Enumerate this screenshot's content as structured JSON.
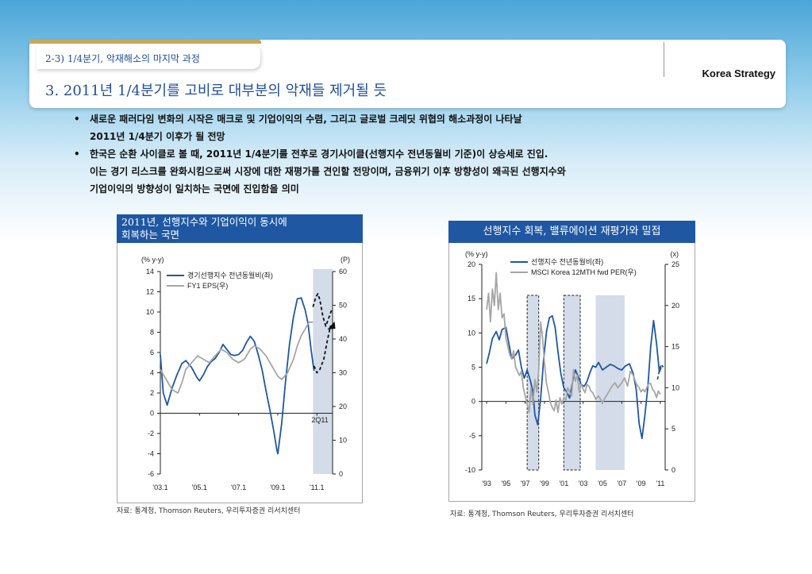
{
  "header": {
    "section_tab": "2-3) 1/4분기, 악재해소의 마지막 과정",
    "brand": "Korea Strategy",
    "title": "3. 2011년 1/4분기를 고비로 대부분의 악재들 제거될 듯"
  },
  "bullets": [
    {
      "lines": [
        "새로운 패러다임 변화의 시작은 매크로 및 기업이익의 수렴, 그리고 글로벌 크레딧 위협의 해소과정이 나타날",
        "2011년 1/4분기 이후가 될 전망"
      ]
    },
    {
      "lines": [
        "한국은 순환 사이클로 볼 때, 2011년 1/4분기를 전후로 경기사이클(선행지수 전년동월비 기준)이 상승세로 진입.",
        "이는 경기 리스크를 완화시킴으로써 시장에 대한 재평가를 견인할 전망이며, 금융위기 이후 방향성이 왜곡된 선행지수와",
        "기업이익의 방향성이 일치하는 국면에 진입함을 의미"
      ]
    }
  ],
  "chart1": {
    "title_lines": [
      "2011년, 선행지수와 기업이익이 동시에",
      "회복하는 국면"
    ],
    "source": "자료: 통계청, Thomson Reuters, 우리투자증권 리서치센터"
  },
  "chart2": {
    "title": "선행지수 회복, 밸류에이션 재평가와 밀접",
    "source": "자료: 통계청, Thomson Reuters, 우리투자증권 리서치센터"
  },
  "chart_data": [
    {
      "type": "line",
      "left_unit": "(% y-y)",
      "right_unit": "(P)",
      "ylim": [
        -6,
        14
      ],
      "y_ticks": [
        "14",
        "12",
        "10",
        "8",
        "6",
        "4",
        "2",
        "0",
        "-2",
        "-4",
        "-6"
      ],
      "y2lim": [
        0,
        60
      ],
      "y2_ticks": [
        "60",
        "50",
        "40",
        "30",
        "20",
        "10",
        "0"
      ],
      "xlim": [
        2003.0,
        2011.8
      ],
      "x_ticks": [
        "'03.1",
        "'05.1",
        "'07.1",
        "'09.1",
        "'11.1"
      ],
      "annotation": "2Q11",
      "shaded": [
        [
          2010.8,
          2011.8
        ]
      ],
      "grid": false,
      "legend_position": "top-left",
      "colors": {
        "leading": "#1f57a3",
        "eps": "#a6a6a6",
        "shade": "#d3dce8",
        "forecast": "#111111"
      },
      "series": [
        {
          "name": "경기선행지수 전년동월비(좌)",
          "axis": "left",
          "x": [
            2003.0,
            2003.15,
            2003.35,
            2003.6,
            2003.85,
            2004.1,
            2004.3,
            2004.6,
            2004.85,
            2005.0,
            2005.2,
            2005.4,
            2005.6,
            2005.8,
            2006.0,
            2006.2,
            2006.4,
            2006.6,
            2006.8,
            2007.0,
            2007.2,
            2007.4,
            2007.6,
            2007.8,
            2008.0,
            2008.2,
            2008.4,
            2008.6,
            2008.8,
            2008.95,
            2009.0,
            2009.2,
            2009.4,
            2009.6,
            2009.8,
            2010.0,
            2010.2,
            2010.4,
            2010.55,
            2010.7,
            2010.85
          ],
          "y": [
            5.8,
            2.0,
            0.8,
            2.5,
            3.8,
            4.9,
            5.2,
            4.5,
            3.6,
            3.2,
            3.8,
            4.6,
            5.1,
            5.4,
            6.0,
            6.8,
            6.3,
            5.8,
            5.7,
            5.8,
            6.2,
            7.0,
            7.6,
            7.1,
            5.8,
            4.3,
            2.2,
            0.3,
            -1.8,
            -3.6,
            -4.0,
            -1.0,
            3.2,
            6.8,
            9.5,
            11.3,
            11.4,
            10.2,
            8.8,
            6.3,
            4.2
          ]
        },
        {
          "name": "FY1 EPS(우)",
          "axis": "right",
          "x": [
            2003.0,
            2003.3,
            2003.6,
            2003.9,
            2004.1,
            2004.3,
            2004.6,
            2004.9,
            2005.2,
            2005.5,
            2005.8,
            2006.1,
            2006.4,
            2006.7,
            2007.0,
            2007.3,
            2007.6,
            2007.8,
            2008.1,
            2008.4,
            2008.7,
            2009.0,
            2009.2,
            2009.5,
            2009.8,
            2010.0,
            2010.2,
            2010.4,
            2010.6,
            2010.8
          ],
          "y": [
            31,
            28,
            25,
            24,
            27,
            31,
            33,
            35,
            34,
            33,
            35,
            37,
            36,
            34,
            33,
            34,
            37,
            38,
            37,
            35,
            32,
            29,
            28,
            30,
            34,
            38,
            41,
            43,
            45,
            45
          ]
        },
        {
          "name": "forecast",
          "axis": "left",
          "style": "dashed",
          "x": [
            2010.8,
            2010.95,
            2011.05,
            2011.15,
            2011.3,
            2011.45,
            2011.6,
            2011.75
          ],
          "y": [
            10.5,
            11.5,
            11.8,
            11.2,
            9.6,
            8.6,
            9.4,
            10.2
          ]
        },
        {
          "name": "EPS forecast",
          "axis": "right",
          "style": "dashed",
          "x": [
            2010.85,
            2011.0,
            2011.15,
            2011.35,
            2011.55,
            2011.7
          ],
          "y": [
            32,
            30,
            31,
            34,
            40,
            44
          ]
        }
      ]
    },
    {
      "type": "line",
      "left_unit": "(% y-y)",
      "right_unit": "(x)",
      "ylim": [
        -10,
        20
      ],
      "y_ticks": [
        "20",
        "15",
        "10",
        "5",
        "0",
        "-5",
        "-10"
      ],
      "y2lim": [
        0,
        25
      ],
      "y2_ticks": [
        "25",
        "20",
        "15",
        "10",
        "5",
        "0"
      ],
      "xlim": [
        1992.5,
        2011.5
      ],
      "x_ticks": [
        "'93",
        "'95",
        "'97",
        "'99",
        "'01",
        "'03",
        "'05",
        "'07",
        "'09",
        "'11"
      ],
      "shaded_dashed": [
        [
          1997.2,
          1998.4
        ],
        [
          2001.0,
          2002.7
        ]
      ],
      "shaded": [
        [
          2004.3,
          2007.3
        ]
      ],
      "grid": false,
      "legend_position": "top-center",
      "colors": {
        "leading": "#1f57a3",
        "per": "#a6a6a6",
        "shade": "#d3dce8"
      },
      "series": [
        {
          "name": "선행지수 전년동월비(좌)",
          "axis": "left",
          "x": [
            1993.0,
            1993.3,
            1993.6,
            1994.0,
            1994.3,
            1994.6,
            1995.0,
            1995.3,
            1995.6,
            1996.0,
            1996.3,
            1996.6,
            1996.9,
            1997.2,
            1997.5,
            1997.8,
            1998.0,
            1998.3,
            1998.6,
            1998.9,
            1999.2,
            1999.5,
            1999.8,
            2000.1,
            2000.4,
            2000.7,
            2001.0,
            2001.3,
            2001.6,
            2001.9,
            2002.2,
            2002.5,
            2002.8,
            2003.1,
            2003.4,
            2003.7,
            2004.0,
            2004.3,
            2004.6,
            2005.0,
            2005.4,
            2005.8,
            2006.2,
            2006.6,
            2007.0,
            2007.4,
            2007.8,
            2008.2,
            2008.5,
            2008.8,
            2009.1,
            2009.4,
            2009.7,
            2010.0,
            2010.3,
            2010.6,
            2010.9,
            2011.1
          ],
          "y": [
            5.5,
            7.2,
            9.2,
            10.2,
            9.0,
            10.5,
            10.8,
            8.5,
            6.2,
            6.8,
            7.5,
            5.0,
            3.4,
            4.6,
            3.2,
            1.5,
            -2.0,
            -3.4,
            0.5,
            6.0,
            10.2,
            12.2,
            12.5,
            10.8,
            7.2,
            4.0,
            2.0,
            1.4,
            0.5,
            2.8,
            4.6,
            3.6,
            2.5,
            2.2,
            2.9,
            4.2,
            5.2,
            5.0,
            5.7,
            4.6,
            5.0,
            5.4,
            5.2,
            4.8,
            4.6,
            5.2,
            5.5,
            4.0,
            1.8,
            -3.2,
            -5.4,
            -2.0,
            2.0,
            8.0,
            11.8,
            8.5,
            4.3,
            5.0
          ]
        },
        {
          "name": "MSCI Korea 12MTH fwd PER(우)",
          "axis": "right",
          "x": [
            1993.0,
            1993.2,
            1993.4,
            1993.6,
            1993.8,
            1994.0,
            1994.2,
            1994.4,
            1994.6,
            1994.8,
            1995.0,
            1995.2,
            1995.4,
            1995.6,
            1995.8,
            1996.0,
            1996.2,
            1996.4,
            1996.6,
            1996.8,
            1997.0,
            1997.2,
            1997.4,
            1997.6,
            1997.8,
            1998.0,
            1998.2,
            1998.4,
            1998.6,
            1998.8,
            1999.0,
            1999.2,
            1999.4,
            1999.6,
            1999.8,
            2000.0,
            2000.2,
            2000.4,
            2000.6,
            2000.8,
            2001.0,
            2001.2,
            2001.4,
            2001.6,
            2001.8,
            2002.0,
            2002.2,
            2002.4,
            2002.6,
            2002.8,
            2003.0,
            2003.2,
            2003.4,
            2003.6,
            2003.8,
            2004.0,
            2004.3,
            2004.6,
            2005.0,
            2005.3,
            2005.6,
            2006.0,
            2006.3,
            2006.6,
            2007.0,
            2007.3,
            2007.6,
            2007.9,
            2008.2,
            2008.5,
            2008.8,
            2009.0,
            2009.2,
            2009.4,
            2009.6,
            2009.8,
            2010.0,
            2010.2,
            2010.4,
            2010.6,
            2010.8,
            2011.0
          ],
          "y": [
            19.5,
            21.5,
            18.0,
            22.0,
            20.0,
            24.0,
            19.5,
            21.5,
            18.5,
            19.0,
            16.0,
            15.0,
            14.0,
            13.5,
            14.5,
            12.5,
            12.0,
            11.5,
            12.0,
            10.0,
            9.0,
            8.0,
            7.0,
            10.0,
            8.0,
            11.0,
            9.5,
            12.0,
            18.0,
            16.0,
            13.0,
            10.5,
            9.5,
            8.2,
            7.6,
            7.2,
            8.5,
            7.0,
            8.8,
            8.0,
            8.8,
            8.5,
            10.0,
            9.5,
            9.0,
            12.2,
            10.8,
            11.5,
            9.5,
            10.5,
            9.8,
            9.4,
            10.4,
            10.2,
            9.6,
            9.4,
            8.6,
            9.0,
            8.2,
            8.8,
            9.4,
            10.2,
            10.6,
            10.0,
            10.6,
            11.2,
            10.2,
            12.0,
            11.5,
            10.5,
            10.0,
            9.5,
            9.8,
            9.5,
            10.0,
            10.5,
            10.5,
            9.8,
            9.5,
            8.8,
            9.6,
            9.2
          ]
        },
        {
          "name": "forecast",
          "axis": "left",
          "style": "dashed",
          "x": [
            2010.7,
            2010.9,
            2011.1,
            2011.3
          ],
          "y": [
            3.2,
            4.5,
            5.4,
            5.0
          ]
        }
      ]
    }
  ]
}
